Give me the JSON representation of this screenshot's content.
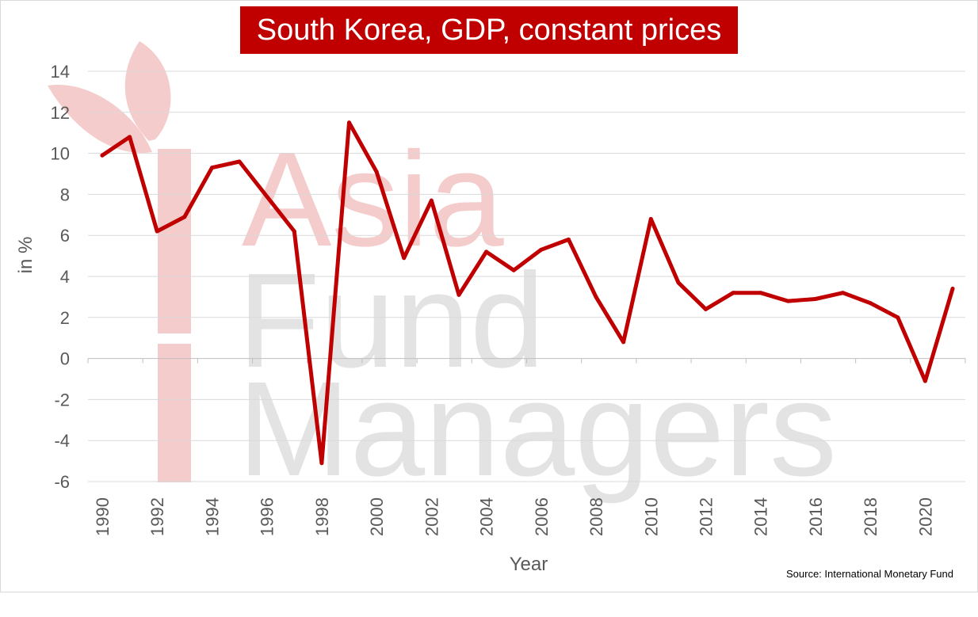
{
  "watermark": {
    "line1": "Asia",
    "line2": "Fund",
    "line3": "Managers"
  },
  "chart_data": {
    "type": "line",
    "title": "South Korea, GDP, constant prices",
    "xlabel": "Year",
    "ylabel": "in %",
    "ylim": [
      -6,
      14
    ],
    "yticks": [
      -6,
      -4,
      -2,
      0,
      2,
      4,
      6,
      8,
      10,
      12,
      14
    ],
    "xlim": [
      1990,
      2021
    ],
    "xticks": [
      1990,
      1992,
      1994,
      1996,
      1998,
      2000,
      2002,
      2004,
      2006,
      2008,
      2010,
      2012,
      2014,
      2016,
      2018,
      2020
    ],
    "grid": true,
    "legend": "none",
    "line_color": "#c00000",
    "x": [
      1990,
      1991,
      1992,
      1993,
      1994,
      1995,
      1996,
      1997,
      1998,
      1999,
      2000,
      2001,
      2002,
      2003,
      2004,
      2005,
      2006,
      2007,
      2008,
      2009,
      2010,
      2011,
      2012,
      2013,
      2014,
      2015,
      2016,
      2017,
      2018,
      2019,
      2020,
      2021
    ],
    "series": [
      {
        "values": [
          9.9,
          10.8,
          6.2,
          6.9,
          9.3,
          9.6,
          7.9,
          6.2,
          -5.1,
          11.5,
          9.1,
          4.9,
          7.7,
          3.1,
          5.2,
          4.3,
          5.3,
          5.8,
          3.0,
          0.8,
          6.8,
          3.7,
          2.4,
          3.2,
          3.2,
          2.8,
          2.9,
          3.2,
          2.7,
          2.0,
          -1.1,
          3.4
        ]
      }
    ],
    "source": "Source: International Monetary Fund"
  }
}
